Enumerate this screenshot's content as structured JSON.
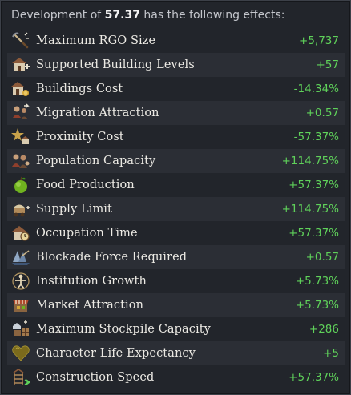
{
  "header": {
    "prefix": "Development of",
    "value": "57.37",
    "suffix": "has the following effects:"
  },
  "colors": {
    "positive_value": "#5fd15a",
    "label": "#eceae4",
    "header_text": "#c4c6cc",
    "background": "#22252b",
    "row_alt": "#2b2e35"
  },
  "effects": [
    {
      "icon": "rgo-size-icon",
      "label": "Maximum RGO Size",
      "value": "+5,737"
    },
    {
      "icon": "building-levels-icon",
      "label": "Supported Building Levels",
      "value": "+57"
    },
    {
      "icon": "buildings-cost-icon",
      "label": "Buildings Cost",
      "value": "-14.34%"
    },
    {
      "icon": "migration-icon",
      "label": "Migration Attraction",
      "value": "+0.57"
    },
    {
      "icon": "proximity-icon",
      "label": "Proximity Cost",
      "value": "-57.37%"
    },
    {
      "icon": "population-icon",
      "label": "Population Capacity",
      "value": "+114.75%"
    },
    {
      "icon": "food-apple-icon",
      "label": "Food Production",
      "value": "+57.37%"
    },
    {
      "icon": "supply-icon",
      "label": "Supply Limit",
      "value": "+114.75%"
    },
    {
      "icon": "occupation-icon",
      "label": "Occupation Time",
      "value": "+57.37%"
    },
    {
      "icon": "blockade-icon",
      "label": "Blockade Force Required",
      "value": "+0.57"
    },
    {
      "icon": "institution-icon",
      "label": "Institution Growth",
      "value": "+5.73%"
    },
    {
      "icon": "market-icon",
      "label": "Market Attraction",
      "value": "+5.73%"
    },
    {
      "icon": "stockpile-icon",
      "label": "Maximum Stockpile Capacity",
      "value": "+286"
    },
    {
      "icon": "heart-icon",
      "label": "Character Life Expectancy",
      "value": "+5"
    },
    {
      "icon": "construction-icon",
      "label": "Construction Speed",
      "value": "+57.37%"
    }
  ]
}
